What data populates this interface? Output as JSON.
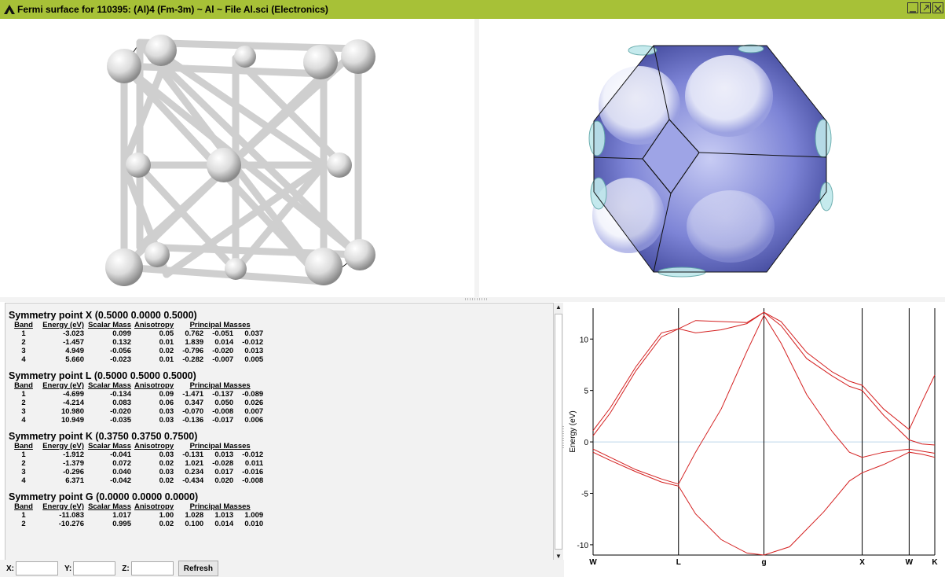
{
  "window": {
    "title": "Fermi surface for 110395: (Al)4  (Fm-3m) ~ Al ~ File Al.sci  (Electronics)",
    "buttons": [
      "minimize",
      "maximize",
      "close"
    ]
  },
  "panes": {
    "crystal_view": "crystal-structure-3d",
    "fermi_view": "fermi-surface-3d"
  },
  "table_headers": {
    "band": "Band",
    "energy": "Energy (eV)",
    "scalar_mass": "Scalar Mass",
    "anisotropy": "Anisotropy",
    "principal": "Principal Masses"
  },
  "symmetry_points": [
    {
      "title": "Symmetry point X (0.5000 0.0000 0.5000)",
      "rows": [
        [
          "1",
          "-3.023",
          "0.099",
          "0.05",
          "0.762",
          "-0.051",
          "0.037"
        ],
        [
          "2",
          "-1.457",
          "0.132",
          "0.01",
          "1.839",
          "0.014",
          "-0.012"
        ],
        [
          "3",
          "4.949",
          "-0.056",
          "0.02",
          "-0.796",
          "-0.020",
          "0.013"
        ],
        [
          "4",
          "5.660",
          "-0.023",
          "0.01",
          "-0.282",
          "-0.007",
          "0.005"
        ]
      ]
    },
    {
      "title": "Symmetry point L (0.5000 0.5000 0.5000)",
      "rows": [
        [
          "1",
          "-4.699",
          "-0.134",
          "0.09",
          "-1.471",
          "-0.137",
          "-0.089"
        ],
        [
          "2",
          "-4.214",
          "0.083",
          "0.06",
          "0.347",
          "0.050",
          "0.026"
        ],
        [
          "3",
          "10.980",
          "-0.020",
          "0.03",
          "-0.070",
          "-0.008",
          "0.007"
        ],
        [
          "4",
          "10.949",
          "-0.035",
          "0.03",
          "-0.136",
          "-0.017",
          "0.006"
        ]
      ]
    },
    {
      "title": "Symmetry point K (0.3750 0.3750 0.7500)",
      "rows": [
        [
          "1",
          "-1.912",
          "-0.041",
          "0.03",
          "-0.131",
          "0.013",
          "-0.012"
        ],
        [
          "2",
          "-1.379",
          "0.072",
          "0.02",
          "1.021",
          "-0.028",
          "0.011"
        ],
        [
          "3",
          "-0.296",
          "0.040",
          "0.03",
          "0.234",
          "0.017",
          "-0.016"
        ],
        [
          "4",
          "6.371",
          "-0.042",
          "0.02",
          "-0.434",
          "0.020",
          "-0.008"
        ]
      ]
    },
    {
      "title": "Symmetry point G (0.0000 0.0000 0.0000)",
      "rows": [
        [
          "1",
          "-11.083",
          "1.017",
          "1.00",
          "1.028",
          "1.013",
          "1.009"
        ],
        [
          "2",
          "-10.276",
          "0.995",
          "0.02",
          "0.100",
          "0.014",
          "0.010"
        ]
      ]
    }
  ],
  "bottombar": {
    "x_label": "X:",
    "y_label": "Y:",
    "z_label": "Z:",
    "x_value": "",
    "y_value": "",
    "z_value": "",
    "refresh_label": "Refresh"
  },
  "chart_data": {
    "type": "line",
    "ylabel": "Energy (eV)",
    "xlabel": "",
    "title": "",
    "ylim": [
      -11,
      13
    ],
    "yticks": [
      -10,
      -5,
      0,
      5,
      10
    ],
    "x_ticks": [
      {
        "label": "W",
        "x": 0
      },
      {
        "label": "L",
        "x": 1
      },
      {
        "label": "g",
        "x": 2
      },
      {
        "label": "X",
        "x": 3.15
      },
      {
        "label": "W",
        "x": 3.7
      },
      {
        "label": "K",
        "x": 4.0
      }
    ],
    "xlim": [
      0,
      4.0
    ],
    "fermi_level": 0,
    "line_color": "#d42020",
    "series": [
      {
        "values": [
          [
            0,
            -1.0
          ],
          [
            0.2,
            -1.8
          ],
          [
            0.5,
            -2.9
          ],
          [
            0.8,
            -3.9
          ],
          [
            1.0,
            -4.3
          ],
          [
            1.2,
            -7.0
          ],
          [
            1.5,
            -9.5
          ],
          [
            1.8,
            -10.8
          ],
          [
            2.0,
            -11.0
          ],
          [
            2.3,
            -10.2
          ],
          [
            2.7,
            -6.8
          ],
          [
            3.0,
            -3.8
          ],
          [
            3.15,
            -3.0
          ],
          [
            3.4,
            -2.2
          ],
          [
            3.7,
            -1.0
          ],
          [
            3.85,
            -1.2
          ],
          [
            4.0,
            -1.5
          ]
        ]
      },
      {
        "values": [
          [
            0,
            -0.7
          ],
          [
            0.2,
            -1.5
          ],
          [
            0.5,
            -2.7
          ],
          [
            0.8,
            -3.6
          ],
          [
            1.0,
            -4.1
          ],
          [
            1.2,
            -1.0
          ],
          [
            1.5,
            3.2
          ],
          [
            1.8,
            8.8
          ],
          [
            2.0,
            12.3
          ],
          [
            2.2,
            9.6
          ],
          [
            2.5,
            4.6
          ],
          [
            2.8,
            1.0
          ],
          [
            3.0,
            -1.0
          ],
          [
            3.15,
            -1.5
          ],
          [
            3.4,
            -1.0
          ],
          [
            3.7,
            -0.7
          ],
          [
            3.85,
            -0.9
          ],
          [
            4.0,
            -1.1
          ]
        ]
      },
      {
        "values": [
          [
            0,
            0.6
          ],
          [
            0.2,
            2.8
          ],
          [
            0.5,
            6.9
          ],
          [
            0.8,
            10.2
          ],
          [
            1.0,
            11.0
          ],
          [
            1.2,
            10.6
          ],
          [
            1.5,
            10.9
          ],
          [
            1.8,
            11.5
          ],
          [
            2.0,
            12.6
          ],
          [
            2.2,
            11.3
          ],
          [
            2.5,
            8.1
          ],
          [
            2.8,
            6.4
          ],
          [
            3.0,
            5.4
          ],
          [
            3.15,
            5.0
          ],
          [
            3.4,
            2.6
          ],
          [
            3.7,
            0.2
          ],
          [
            3.85,
            -0.2
          ],
          [
            4.0,
            -0.3
          ]
        ]
      },
      {
        "values": [
          [
            0,
            1.1
          ],
          [
            0.2,
            3.3
          ],
          [
            0.5,
            7.3
          ],
          [
            0.8,
            10.6
          ],
          [
            1.0,
            11.0
          ],
          [
            1.2,
            11.8
          ],
          [
            1.5,
            11.7
          ],
          [
            1.8,
            11.6
          ],
          [
            2.0,
            12.6
          ],
          [
            2.2,
            11.7
          ],
          [
            2.5,
            8.7
          ],
          [
            2.8,
            6.8
          ],
          [
            3.0,
            5.9
          ],
          [
            3.15,
            5.5
          ],
          [
            3.4,
            3.2
          ],
          [
            3.7,
            1.2
          ],
          [
            3.85,
            3.9
          ],
          [
            4.0,
            6.5
          ]
        ]
      }
    ]
  }
}
